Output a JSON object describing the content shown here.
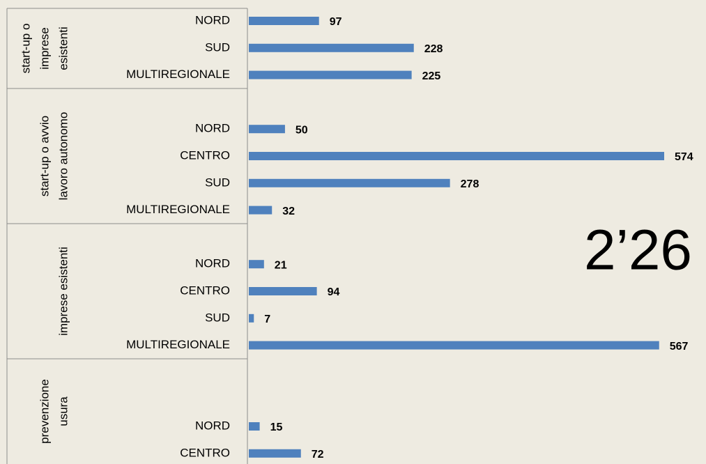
{
  "chart_data": {
    "type": "bar",
    "orientation": "horizontal",
    "color": "#4f81bd",
    "xlim": [
      0,
      574
    ],
    "annotation": "2’26",
    "groups": [
      {
        "name": [
          "start-up o",
          "imprese",
          "esistenti"
        ],
        "categories": [
          "NORD",
          "SUD",
          "MULTIREGIONALE"
        ],
        "values": [
          97,
          228,
          225
        ]
      },
      {
        "name": [
          "start-up o avvio",
          "lavoro autonomo"
        ],
        "categories": [
          null,
          "NORD",
          "CENTRO",
          "SUD",
          "MULTIREGIONALE"
        ],
        "values": [
          null,
          50,
          574,
          278,
          32
        ]
      },
      {
        "name": [
          "imprese esistenti"
        ],
        "categories": [
          null,
          "NORD",
          "CENTRO",
          "SUD",
          "MULTIREGIONALE"
        ],
        "values": [
          null,
          21,
          94,
          7,
          567
        ]
      },
      {
        "name": [
          "prevenzione",
          "usura"
        ],
        "categories": [
          null,
          null,
          "NORD",
          "CENTRO"
        ],
        "values": [
          null,
          null,
          15,
          72
        ]
      }
    ]
  }
}
